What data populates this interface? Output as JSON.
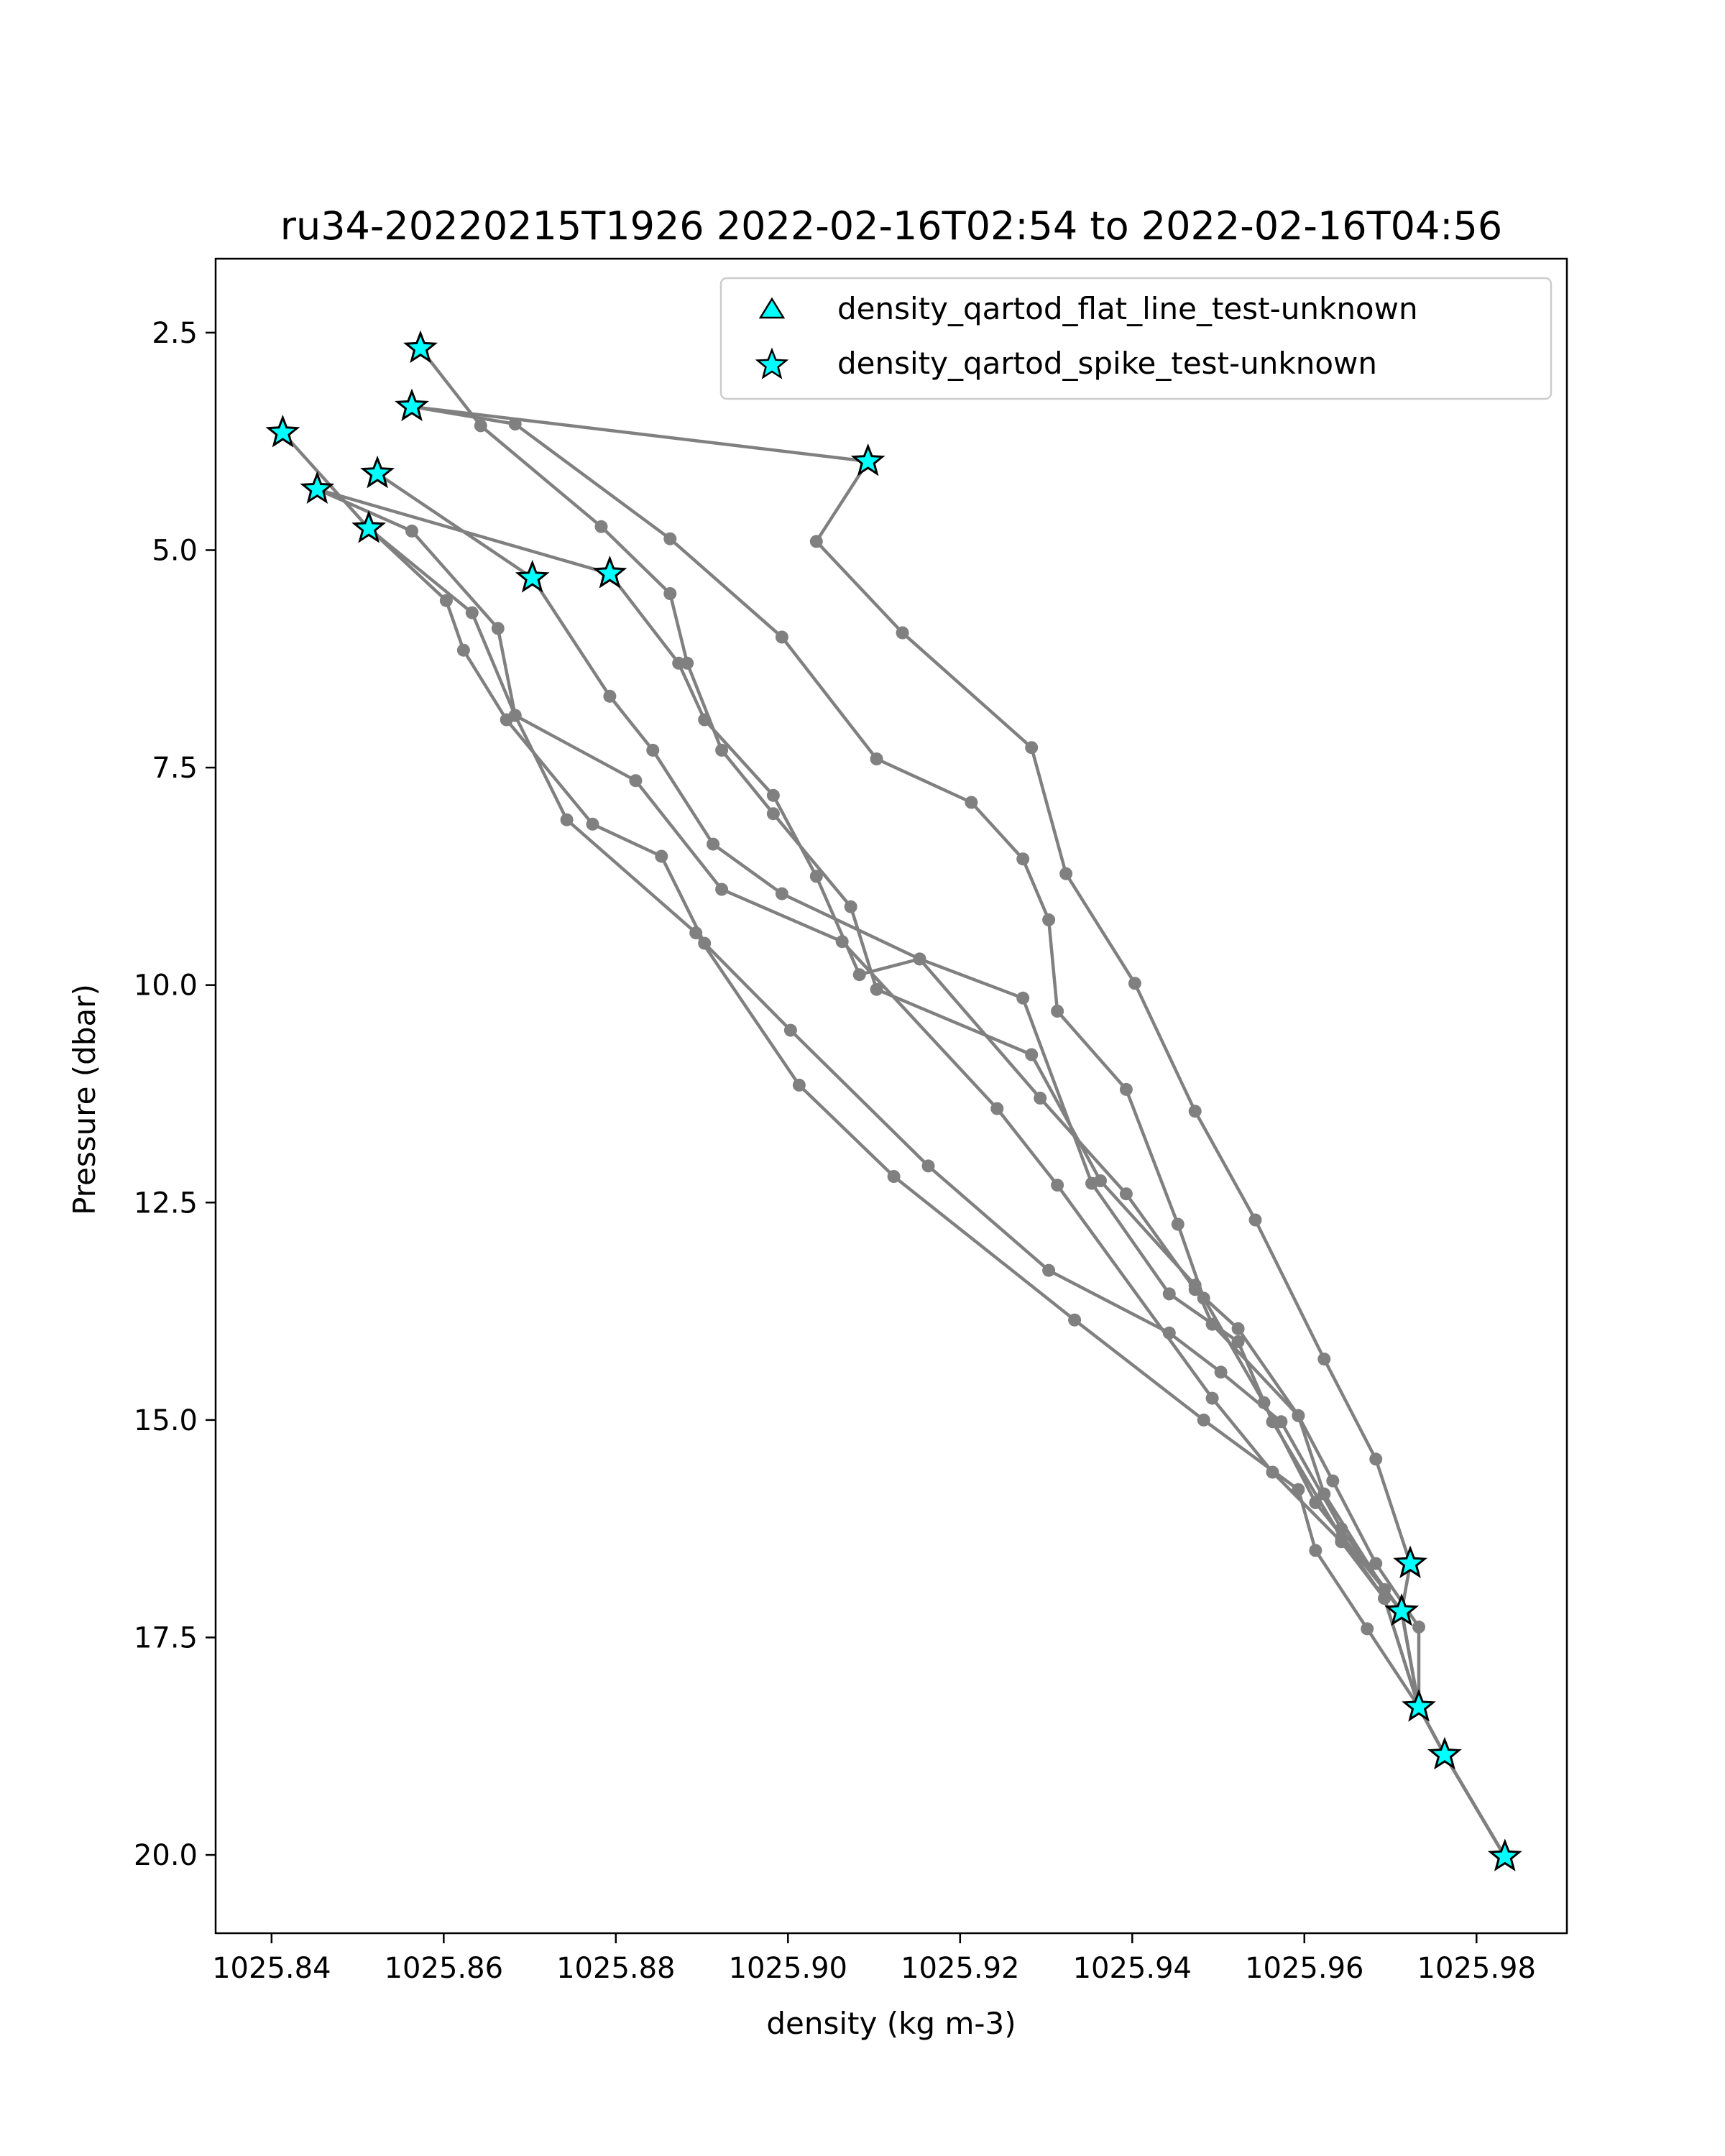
{
  "chart_data": {
    "type": "line",
    "title": "ru34-20220215T1926 2022-02-16T02:54 to 2022-02-16T04:56",
    "xlabel": "density (kg m-3)",
    "ylabel": "Pressure (dbar)",
    "xlim": [
      1025.8335,
      1025.9905
    ],
    "ylim": [
      20.9,
      1.65
    ],
    "y_inverted": true,
    "x_ticks": [
      1025.84,
      1025.86,
      1025.88,
      1025.9,
      1025.92,
      1025.94,
      1025.96,
      1025.98
    ],
    "x_tick_labels": [
      "1025.84",
      "1025.86",
      "1025.88",
      "1025.90",
      "1025.92",
      "1025.94",
      "1025.96",
      "1025.98"
    ],
    "y_ticks": [
      2.5,
      5.0,
      7.5,
      10.0,
      12.5,
      15.0,
      17.5,
      20.0
    ],
    "y_tick_labels": [
      "2.5",
      "5.0",
      "7.5",
      "10.0",
      "12.5",
      "15.0",
      "17.5",
      "20.0"
    ],
    "grid": false,
    "legend_position": "top-right",
    "line_color": "#808080",
    "marker_color": "#00ffff",
    "series": [
      {
        "points": [
          [
            1025.8573,
            2.68
          ],
          [
            1025.8643,
            3.57
          ],
          [
            1025.8783,
            4.73
          ],
          [
            1025.8863,
            5.5
          ],
          [
            1025.8883,
            6.3
          ],
          [
            1025.8923,
            7.3
          ],
          [
            1025.8983,
            8.03
          ],
          [
            1025.9073,
            9.1
          ],
          [
            1025.9103,
            10.05
          ],
          [
            1025.9283,
            10.8
          ],
          [
            1025.9363,
            12.25
          ],
          [
            1025.9473,
            13.45
          ],
          [
            1025.9493,
            13.9
          ],
          [
            1025.9593,
            14.95
          ],
          [
            1025.9633,
            15.7
          ],
          [
            1025.9683,
            16.65
          ],
          [
            1025.9733,
            17.38
          ],
          [
            1025.9733,
            18.3
          ],
          [
            1025.9763,
            18.85
          ],
          [
            1025.9833,
            20.02
          ]
        ]
      },
      {
        "points": [
          [
            1025.8563,
            3.35
          ],
          [
            1025.9093,
            3.98
          ],
          [
            1025.9033,
            4.9
          ],
          [
            1025.9133,
            5.95
          ],
          [
            1025.9283,
            7.27
          ],
          [
            1025.9323,
            8.72
          ],
          [
            1025.9403,
            9.98
          ],
          [
            1025.9473,
            11.45
          ],
          [
            1025.9543,
            12.7
          ],
          [
            1025.9623,
            14.3
          ],
          [
            1025.9683,
            15.45
          ],
          [
            1025.9723,
            16.65
          ],
          [
            1025.9713,
            17.2
          ],
          [
            1025.9733,
            18.3
          ],
          [
            1025.9763,
            18.85
          ],
          [
            1025.9833,
            20.02
          ]
        ]
      },
      {
        "points": [
          [
            1025.8563,
            3.35
          ],
          [
            1025.8683,
            3.55
          ],
          [
            1025.8863,
            4.87
          ],
          [
            1025.8993,
            6.0
          ],
          [
            1025.9103,
            7.4
          ],
          [
            1025.9213,
            7.9
          ],
          [
            1025.9273,
            8.55
          ],
          [
            1025.9303,
            9.25
          ],
          [
            1025.9313,
            10.3
          ],
          [
            1025.9393,
            11.2
          ],
          [
            1025.9453,
            12.75
          ],
          [
            1025.9483,
            13.6
          ],
          [
            1025.9553,
            14.8
          ],
          [
            1025.9613,
            15.95
          ],
          [
            1025.9693,
            16.95
          ],
          [
            1025.9713,
            17.2
          ],
          [
            1025.9733,
            18.3
          ],
          [
            1025.9763,
            18.85
          ],
          [
            1025.9833,
            20.02
          ]
        ]
      },
      {
        "points": [
          [
            1025.8413,
            3.65
          ],
          [
            1025.8513,
            4.75
          ],
          [
            1025.8603,
            5.58
          ],
          [
            1025.8623,
            6.15
          ],
          [
            1025.8673,
            6.95
          ],
          [
            1025.8773,
            8.15
          ],
          [
            1025.8853,
            8.52
          ],
          [
            1025.8903,
            9.52
          ],
          [
            1025.9003,
            10.52
          ],
          [
            1025.9163,
            12.08
          ],
          [
            1025.9303,
            13.28
          ],
          [
            1025.9443,
            14.0
          ],
          [
            1025.9503,
            14.45
          ],
          [
            1025.9573,
            15.02
          ],
          [
            1025.9643,
            16.25
          ],
          [
            1025.9713,
            17.2
          ],
          [
            1025.9733,
            18.3
          ],
          [
            1025.9763,
            18.85
          ],
          [
            1025.9833,
            20.02
          ]
        ]
      },
      {
        "points": [
          [
            1025.8453,
            4.3
          ],
          [
            1025.8793,
            5.27
          ],
          [
            1025.8873,
            6.3
          ],
          [
            1025.8903,
            6.95
          ],
          [
            1025.8983,
            7.82
          ],
          [
            1025.9033,
            8.75
          ],
          [
            1025.9083,
            9.88
          ],
          [
            1025.9153,
            9.7
          ],
          [
            1025.9273,
            10.15
          ],
          [
            1025.9353,
            12.28
          ],
          [
            1025.9443,
            13.55
          ],
          [
            1025.9523,
            14.1
          ],
          [
            1025.9563,
            15.02
          ],
          [
            1025.9643,
            16.35
          ],
          [
            1025.9693,
            17.05
          ],
          [
            1025.9733,
            18.3
          ],
          [
            1025.9763,
            18.85
          ],
          [
            1025.9833,
            20.02
          ]
        ]
      },
      {
        "points": [
          [
            1025.8523,
            4.12
          ],
          [
            1025.8703,
            5.32
          ],
          [
            1025.8793,
            6.68
          ],
          [
            1025.8843,
            7.3
          ],
          [
            1025.8913,
            8.38
          ],
          [
            1025.8993,
            8.95
          ],
          [
            1025.9153,
            9.7
          ],
          [
            1025.9293,
            11.3
          ],
          [
            1025.9393,
            12.4
          ],
          [
            1025.9473,
            13.5
          ],
          [
            1025.9523,
            13.95
          ],
          [
            1025.9593,
            14.95
          ],
          [
            1025.9623,
            15.85
          ],
          [
            1025.9693,
            16.95
          ],
          [
            1025.9713,
            17.2
          ],
          [
            1025.9733,
            18.3
          ],
          [
            1025.9763,
            18.85
          ],
          [
            1025.9833,
            20.02
          ]
        ]
      },
      {
        "points": [
          [
            1025.8453,
            4.3
          ],
          [
            1025.8563,
            4.78
          ],
          [
            1025.8663,
            5.9
          ],
          [
            1025.8683,
            6.9
          ],
          [
            1025.8743,
            8.1
          ],
          [
            1025.8893,
            9.4
          ],
          [
            1025.9013,
            11.15
          ],
          [
            1025.9123,
            12.2
          ],
          [
            1025.9333,
            13.85
          ],
          [
            1025.9483,
            15.0
          ],
          [
            1025.9593,
            15.8
          ],
          [
            1025.9613,
            16.5
          ],
          [
            1025.9673,
            17.4
          ],
          [
            1025.9733,
            18.3
          ],
          [
            1025.9763,
            18.85
          ],
          [
            1025.9833,
            20.02
          ]
        ]
      },
      {
        "points": [
          [
            1025.8513,
            4.75
          ],
          [
            1025.8633,
            5.72
          ],
          [
            1025.8683,
            6.9
          ],
          [
            1025.8823,
            7.65
          ],
          [
            1025.8923,
            8.9
          ],
          [
            1025.9063,
            9.5
          ],
          [
            1025.9243,
            11.42
          ],
          [
            1025.9313,
            12.3
          ],
          [
            1025.9493,
            14.75
          ],
          [
            1025.9563,
            15.6
          ],
          [
            1025.9643,
            16.4
          ],
          [
            1025.9693,
            17.05
          ],
          [
            1025.9733,
            18.3
          ],
          [
            1025.9763,
            18.85
          ],
          [
            1025.9833,
            20.02
          ]
        ]
      }
    ],
    "flagged": [
      {
        "x": 1025.8573,
        "y": 2.68
      },
      {
        "x": 1025.8563,
        "y": 3.35
      },
      {
        "x": 1025.8413,
        "y": 3.65
      },
      {
        "x": 1025.9093,
        "y": 3.98
      },
      {
        "x": 1025.8523,
        "y": 4.12
      },
      {
        "x": 1025.8453,
        "y": 4.3
      },
      {
        "x": 1025.8513,
        "y": 4.75
      },
      {
        "x": 1025.8793,
        "y": 5.27
      },
      {
        "x": 1025.8703,
        "y": 5.32
      },
      {
        "x": 1025.9723,
        "y": 16.65
      },
      {
        "x": 1025.9713,
        "y": 17.2
      },
      {
        "x": 1025.9733,
        "y": 18.3
      },
      {
        "x": 1025.9763,
        "y": 18.85
      },
      {
        "x": 1025.9833,
        "y": 20.02
      }
    ],
    "legend": [
      {
        "label": "density_qartod_flat_line_test-unknown",
        "marker": "triangle"
      },
      {
        "label": "density_qartod_spike_test-unknown",
        "marker": "star"
      }
    ]
  }
}
